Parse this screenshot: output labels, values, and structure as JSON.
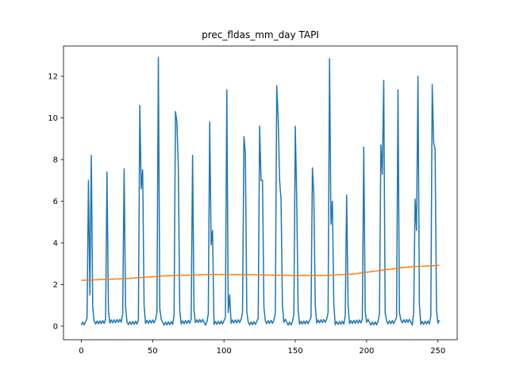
{
  "chart_data": {
    "type": "line",
    "title": "prec_fldas_mm_day TAPI",
    "xlabel": "",
    "ylabel": "",
    "xlim": [
      -12.5,
      263.5
    ],
    "ylim": [
      -0.65,
      13.45
    ],
    "xticks": [
      0,
      50,
      100,
      150,
      200,
      250
    ],
    "yticks": [
      0,
      2,
      4,
      6,
      8,
      10,
      12
    ],
    "grid": false,
    "legend": "none",
    "colors": {
      "series1": "#1f77b4",
      "series2": "#ff7f0e"
    },
    "series": [
      {
        "style": "line",
        "color": "#1f77b4",
        "peaks": [
          [
            5,
            7.0
          ],
          [
            6,
            1.5
          ],
          [
            7,
            8.2
          ],
          [
            18,
            7.4
          ],
          [
            30,
            7.55
          ],
          [
            41,
            10.6
          ],
          [
            42,
            6.6
          ],
          [
            43,
            7.5
          ],
          [
            54,
            12.9
          ],
          [
            66,
            10.3
          ],
          [
            67,
            9.8
          ],
          [
            68,
            7.6
          ],
          [
            78,
            8.2
          ],
          [
            90,
            9.8
          ],
          [
            91,
            3.9
          ],
          [
            92,
            4.6
          ],
          [
            102,
            11.35
          ],
          [
            104,
            1.5
          ],
          [
            114,
            9.1
          ],
          [
            115,
            8.3
          ],
          [
            125,
            9.6
          ],
          [
            126,
            7.0
          ],
          [
            127,
            7.0
          ],
          [
            137,
            11.55
          ],
          [
            138,
            10.0
          ],
          [
            139,
            7.0
          ],
          [
            140,
            6.1
          ],
          [
            150,
            9.6
          ],
          [
            151,
            6.0
          ],
          [
            162,
            7.6
          ],
          [
            163,
            6.3
          ],
          [
            174,
            12.85
          ],
          [
            175,
            4.9
          ],
          [
            176,
            6.0
          ],
          [
            186,
            6.3
          ],
          [
            198,
            8.6
          ],
          [
            210,
            8.7
          ],
          [
            211,
            7.3
          ],
          [
            212,
            11.8
          ],
          [
            222,
            11.35
          ],
          [
            234,
            6.1
          ],
          [
            235,
            4.6
          ],
          [
            236,
            12.0
          ],
          [
            246,
            11.6
          ],
          [
            247,
            8.8
          ],
          [
            248,
            8.5
          ]
        ]
      },
      {
        "style": "line",
        "color": "#ff7f0e",
        "knots": [
          [
            0,
            2.2
          ],
          [
            30,
            2.28
          ],
          [
            60,
            2.42
          ],
          [
            90,
            2.48
          ],
          [
            120,
            2.47
          ],
          [
            150,
            2.43
          ],
          [
            170,
            2.43
          ],
          [
            190,
            2.5
          ],
          [
            210,
            2.68
          ],
          [
            230,
            2.85
          ],
          [
            251,
            2.92
          ]
        ]
      }
    ]
  }
}
